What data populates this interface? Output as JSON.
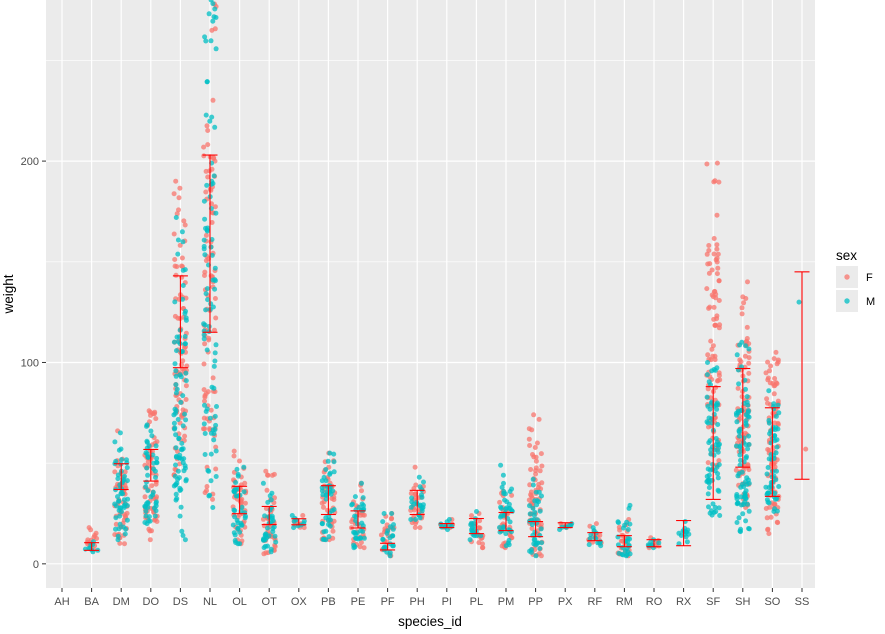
{
  "chart_data": {
    "type": "scatter",
    "subtype": "jittered points with min-max error bars",
    "title": "",
    "xlabel": "species_id",
    "ylabel": "weight",
    "ylim": [
      -12,
      280
    ],
    "y_ticks": [
      0,
      100,
      200
    ],
    "grid": true,
    "legend_position": "right",
    "legend_title": "sex",
    "colors": {
      "panel": "#ebebeb",
      "grid": "#ffffff",
      "F": "#f8766d",
      "M": "#00bfc4",
      "errorbar": "#ff0000"
    },
    "categories": [
      "AH",
      "BA",
      "DM",
      "DO",
      "DS",
      "NL",
      "OL",
      "OT",
      "OX",
      "PB",
      "PE",
      "PF",
      "PH",
      "PI",
      "PL",
      "PM",
      "PP",
      "PX",
      "RF",
      "RM",
      "RO",
      "RX",
      "SF",
      "SH",
      "SO",
      "SS"
    ],
    "series": [
      {
        "name": "F",
        "ranges": [
          null,
          [
            7,
            18
          ],
          [
            10,
            66
          ],
          [
            12,
            76
          ],
          [
            44,
            190
          ],
          [
            32,
            278
          ],
          [
            10,
            56
          ],
          [
            5,
            46
          ],
          [
            18,
            24
          ],
          [
            12,
            55
          ],
          [
            8,
            40
          ],
          [
            4,
            25
          ],
          [
            18,
            48
          ],
          [
            18,
            22
          ],
          [
            8,
            25
          ],
          [
            8,
            36
          ],
          [
            4,
            74
          ],
          [
            18,
            20
          ],
          [
            10,
            20
          ],
          [
            4,
            22
          ],
          [
            8,
            13
          ],
          null,
          [
            47,
            199
          ],
          [
            28,
            140
          ],
          [
            15,
            105
          ],
          [
            57,
            57
          ]
        ]
      },
      {
        "name": "M",
        "ranges": [
          null,
          [
            6,
            11
          ],
          [
            12,
            65
          ],
          [
            20,
            69
          ],
          [
            12,
            172
          ],
          [
            28,
            280
          ],
          [
            10,
            48
          ],
          [
            6,
            40
          ],
          [
            18,
            24
          ],
          [
            12,
            55
          ],
          [
            8,
            40
          ],
          [
            4,
            25
          ],
          [
            22,
            43
          ],
          [
            17,
            22
          ],
          [
            12,
            26
          ],
          [
            9,
            49
          ],
          [
            4,
            42
          ],
          [
            17,
            20
          ],
          [
            9,
            18
          ],
          [
            4,
            29
          ],
          [
            8,
            12
          ],
          [
            10,
            21
          ],
          [
            24,
            100
          ],
          [
            16,
            110
          ],
          [
            26,
            86
          ],
          [
            130,
            130
          ]
        ]
      }
    ],
    "error_bars": [
      null,
      [
        6.7,
        10.5
      ],
      [
        36.9,
        49.7
      ],
      [
        41.1,
        56.8
      ],
      [
        97.4,
        143.0
      ],
      [
        115.0,
        203.0
      ],
      [
        24.9,
        38.5
      ],
      [
        19.5,
        28.5
      ],
      [
        19.4,
        22.4
      ],
      [
        24.5,
        38.8
      ],
      [
        17.8,
        26.3
      ],
      [
        6.9,
        10.2
      ],
      [
        24.5,
        36.5
      ],
      [
        18.0,
        20.0
      ],
      [
        15.0,
        22.5
      ],
      [
        16.5,
        25.5
      ],
      [
        13.5,
        21.0
      ],
      [
        18.0,
        20.4
      ],
      [
        11.5,
        15.5
      ],
      [
        8.5,
        14.0
      ],
      [
        8.5,
        12.0
      ],
      [
        9.0,
        21.5
      ],
      [
        32.0,
        88.0
      ],
      [
        48.0,
        97.0
      ],
      [
        33.5,
        77.5
      ],
      [
        42.0,
        145.0
      ]
    ]
  }
}
